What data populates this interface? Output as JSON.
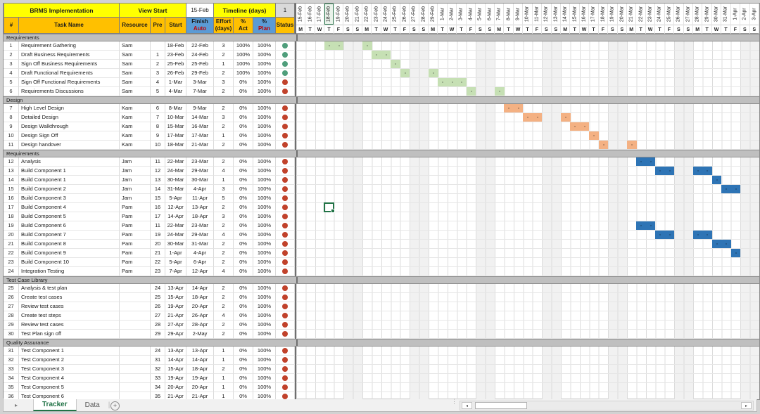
{
  "header": {
    "title": "BRMS Implementation",
    "view_start_label": "View Start",
    "view_start_value": "15-Feb",
    "timeline_label": "Timeline (days)",
    "timeline_value": "1"
  },
  "columns": {
    "num": "#",
    "task": "Task Name",
    "resource": "Resource",
    "pre": "Pre",
    "start": "Start",
    "finish_l1": "Finish",
    "finish_l2": "Auto",
    "effort_l1": "Effort",
    "effort_l2": "(days)",
    "act_l1": "%",
    "act_l2": "Act",
    "plan_l1": "%",
    "plan_l2": "Plan",
    "status": "Status"
  },
  "timeline": {
    "dates": [
      "15-Feb",
      "16-Feb",
      "17-Feb",
      "18-Feb",
      "19-Feb",
      "20-Feb",
      "21-Feb",
      "22-Feb",
      "23-Feb",
      "24-Feb",
      "25-Feb",
      "26-Feb",
      "27-Feb",
      "28-Feb",
      "29-Feb",
      "1-Mar",
      "2-Mar",
      "3-Mar",
      "4-Mar",
      "5-Mar",
      "6-Mar",
      "7-Mar",
      "8-Mar",
      "9-Mar",
      "10-Mar",
      "11-Mar",
      "12-Mar",
      "13-Mar",
      "14-Mar",
      "15-Mar",
      "16-Mar",
      "17-Mar",
      "18-Mar",
      "19-Mar",
      "20-Mar",
      "21-Mar",
      "22-Mar",
      "23-Mar",
      "24-Mar",
      "25-Mar",
      "26-Mar",
      "27-Mar",
      "28-Mar",
      "29-Mar",
      "30-Mar",
      "31-Mar",
      "1-Apr",
      "2-Apr",
      "3-Apr"
    ],
    "day_letters": [
      "M",
      "T",
      "W",
      "T",
      "F",
      "S",
      "S",
      "M",
      "T",
      "W",
      "T",
      "F",
      "S",
      "S",
      "M",
      "T",
      "W",
      "T",
      "F",
      "S",
      "S",
      "M",
      "T",
      "W",
      "T",
      "F",
      "S",
      "S",
      "M",
      "T",
      "W",
      "T",
      "F",
      "S",
      "S",
      "M",
      "T",
      "W",
      "T",
      "F",
      "S",
      "S",
      "M",
      "T",
      "W",
      "T",
      "F",
      "S",
      "S"
    ]
  },
  "sections": [
    {
      "name": "Requirements",
      "bar": "green",
      "tasks": [
        {
          "id": "1",
          "name": "Requirement Gathering",
          "res": "Sam",
          "pre": "",
          "start": "18-Feb",
          "finish": "22-Feb",
          "eff": "3",
          "act": "100%",
          "plan": "100%",
          "status": "green",
          "cells": [
            3,
            4,
            7
          ]
        },
        {
          "id": "2",
          "name": "Draft Business Requirements",
          "res": "Sam",
          "pre": "1",
          "start": "23-Feb",
          "finish": "24-Feb",
          "eff": "2",
          "act": "100%",
          "plan": "100%",
          "status": "green",
          "cells": [
            8,
            9
          ]
        },
        {
          "id": "3",
          "name": "Sign Off Business Requirements",
          "res": "Sam",
          "pre": "2",
          "start": "25-Feb",
          "finish": "25-Feb",
          "eff": "1",
          "act": "100%",
          "plan": "100%",
          "status": "green",
          "cells": [
            10
          ]
        },
        {
          "id": "4",
          "name": "Draft Functional Requirements",
          "res": "Sam",
          "pre": "3",
          "start": "26-Feb",
          "finish": "29-Feb",
          "eff": "2",
          "act": "100%",
          "plan": "100%",
          "status": "green",
          "cells": [
            11,
            14
          ]
        },
        {
          "id": "5",
          "name": "Sign Off Functional Requirements",
          "res": "Sam",
          "pre": "4",
          "start": "1-Mar",
          "finish": "3-Mar",
          "eff": "3",
          "act": "0%",
          "plan": "100%",
          "status": "red",
          "cells": [
            15,
            16,
            17
          ]
        },
        {
          "id": "6",
          "name": "Requirements Discussions",
          "res": "Sam",
          "pre": "5",
          "start": "4-Mar",
          "finish": "7-Mar",
          "eff": "2",
          "act": "0%",
          "plan": "100%",
          "status": "red",
          "cells": [
            18,
            21
          ]
        }
      ]
    },
    {
      "name": "Design",
      "bar": "orange",
      "tasks": [
        {
          "id": "7",
          "name": "High Level Design",
          "res": "Kam",
          "pre": "6",
          "start": "8-Mar",
          "finish": "9-Mar",
          "eff": "2",
          "act": "0%",
          "plan": "100%",
          "status": "red",
          "cells": [
            22,
            23
          ]
        },
        {
          "id": "8",
          "name": "Detailed Design",
          "res": "Kam",
          "pre": "7",
          "start": "10-Mar",
          "finish": "14-Mar",
          "eff": "3",
          "act": "0%",
          "plan": "100%",
          "status": "red",
          "cells": [
            24,
            25,
            28
          ]
        },
        {
          "id": "9",
          "name": "Design Walkthrough",
          "res": "Kam",
          "pre": "8",
          "start": "15-Mar",
          "finish": "16-Mar",
          "eff": "2",
          "act": "0%",
          "plan": "100%",
          "status": "red",
          "cells": [
            29,
            30
          ]
        },
        {
          "id": "10",
          "name": "Design Sign Off",
          "res": "Kam",
          "pre": "9",
          "start": "17-Mar",
          "finish": "17-Mar",
          "eff": "1",
          "act": "0%",
          "plan": "100%",
          "status": "red",
          "cells": [
            31
          ]
        },
        {
          "id": "11",
          "name": "Design handover",
          "res": "Kam",
          "pre": "10",
          "start": "18-Mar",
          "finish": "21-Mar",
          "eff": "2",
          "act": "0%",
          "plan": "100%",
          "status": "red",
          "cells": [
            32,
            35
          ]
        }
      ]
    },
    {
      "name": "Requirements",
      "bar": "blue",
      "tasks": [
        {
          "id": "12",
          "name": "Analysis",
          "res": "Jam",
          "pre": "11",
          "start": "22-Mar",
          "finish": "23-Mar",
          "eff": "2",
          "act": "0%",
          "plan": "100%",
          "status": "red",
          "cells": [
            36,
            37
          ]
        },
        {
          "id": "13",
          "name": "Build Component 1",
          "res": "Jam",
          "pre": "12",
          "start": "24-Mar",
          "finish": "29-Mar",
          "eff": "4",
          "act": "0%",
          "plan": "100%",
          "status": "red",
          "cells": [
            38,
            39,
            42,
            43
          ]
        },
        {
          "id": "14",
          "name": "Build Component 1",
          "res": "Jam",
          "pre": "13",
          "start": "30-Mar",
          "finish": "30-Mar",
          "eff": "1",
          "act": "0%",
          "plan": "100%",
          "status": "red",
          "cells": [
            44
          ]
        },
        {
          "id": "15",
          "name": "Build Component 2",
          "res": "Jam",
          "pre": "14",
          "start": "31-Mar",
          "finish": "4-Apr",
          "eff": "3",
          "act": "0%",
          "plan": "100%",
          "status": "red",
          "cells": [
            45,
            46
          ]
        },
        {
          "id": "16",
          "name": "Build Component 3",
          "res": "Jam",
          "pre": "15",
          "start": "5-Apr",
          "finish": "11-Apr",
          "eff": "5",
          "act": "0%",
          "plan": "100%",
          "status": "red",
          "cells": []
        },
        {
          "id": "17",
          "name": "Build Component 4",
          "res": "Pam",
          "pre": "16",
          "start": "12-Apr",
          "finish": "13-Apr",
          "eff": "2",
          "act": "0%",
          "plan": "100%",
          "status": "red",
          "cells": []
        },
        {
          "id": "18",
          "name": "Build Component 5",
          "res": "Pam",
          "pre": "17",
          "start": "14-Apr",
          "finish": "18-Apr",
          "eff": "3",
          "act": "0%",
          "plan": "100%",
          "status": "red",
          "cells": []
        },
        {
          "id": "19",
          "name": "Build Component 6",
          "res": "Pam",
          "pre": "11",
          "start": "22-Mar",
          "finish": "23-Mar",
          "eff": "2",
          "act": "0%",
          "plan": "100%",
          "status": "red",
          "cells": [
            36,
            37
          ]
        },
        {
          "id": "20",
          "name": "Build Component 7",
          "res": "Pam",
          "pre": "19",
          "start": "24-Mar",
          "finish": "29-Mar",
          "eff": "4",
          "act": "0%",
          "plan": "100%",
          "status": "red",
          "cells": [
            38,
            39,
            42,
            43
          ]
        },
        {
          "id": "21",
          "name": "Build Component 8",
          "res": "Pam",
          "pre": "20",
          "start": "30-Mar",
          "finish": "31-Mar",
          "eff": "2",
          "act": "0%",
          "plan": "100%",
          "status": "red",
          "cells": [
            44,
            45
          ]
        },
        {
          "id": "22",
          "name": "Build Component 9",
          "res": "Pam",
          "pre": "21",
          "start": "1-Apr",
          "finish": "4-Apr",
          "eff": "2",
          "act": "0%",
          "plan": "100%",
          "status": "red",
          "cells": [
            46
          ]
        },
        {
          "id": "23",
          "name": "Build Component 10",
          "res": "Pam",
          "pre": "22",
          "start": "5-Apr",
          "finish": "6-Apr",
          "eff": "2",
          "act": "0%",
          "plan": "100%",
          "status": "red",
          "cells": []
        },
        {
          "id": "24",
          "name": "Integration Testing",
          "res": "Pam",
          "pre": "23",
          "start": "7-Apr",
          "finish": "12-Apr",
          "eff": "4",
          "act": "0%",
          "plan": "100%",
          "status": "red",
          "cells": []
        }
      ]
    },
    {
      "name": "Test Case Library",
      "bar": null,
      "tasks": [
        {
          "id": "25",
          "name": "Analysis & test plan",
          "res": "",
          "pre": "24",
          "start": "13-Apr",
          "finish": "14-Apr",
          "eff": "2",
          "act": "0%",
          "plan": "100%",
          "status": "red",
          "cells": []
        },
        {
          "id": "26",
          "name": "Create test cases",
          "res": "",
          "pre": "25",
          "start": "15-Apr",
          "finish": "18-Apr",
          "eff": "2",
          "act": "0%",
          "plan": "100%",
          "status": "red",
          "cells": []
        },
        {
          "id": "27",
          "name": "Review test cases",
          "res": "",
          "pre": "26",
          "start": "19-Apr",
          "finish": "20-Apr",
          "eff": "2",
          "act": "0%",
          "plan": "100%",
          "status": "red",
          "cells": []
        },
        {
          "id": "28",
          "name": "Create test steps",
          "res": "",
          "pre": "27",
          "start": "21-Apr",
          "finish": "26-Apr",
          "eff": "4",
          "act": "0%",
          "plan": "100%",
          "status": "red",
          "cells": []
        },
        {
          "id": "29",
          "name": "Review test cases",
          "res": "",
          "pre": "28",
          "start": "27-Apr",
          "finish": "28-Apr",
          "eff": "2",
          "act": "0%",
          "plan": "100%",
          "status": "red",
          "cells": []
        },
        {
          "id": "30",
          "name": "Test Plan sign off",
          "res": "",
          "pre": "29",
          "start": "29-Apr",
          "finish": "2-May",
          "eff": "2",
          "act": "0%",
          "plan": "100%",
          "status": "red",
          "cells": []
        }
      ]
    },
    {
      "name": "Quality Assurance",
      "bar": null,
      "tasks": [
        {
          "id": "31",
          "name": "Test Component 1",
          "res": "",
          "pre": "24",
          "start": "13-Apr",
          "finish": "13-Apr",
          "eff": "1",
          "act": "0%",
          "plan": "100%",
          "status": "red",
          "cells": []
        },
        {
          "id": "32",
          "name": "Test Component 2",
          "res": "",
          "pre": "31",
          "start": "14-Apr",
          "finish": "14-Apr",
          "eff": "1",
          "act": "0%",
          "plan": "100%",
          "status": "red",
          "cells": []
        },
        {
          "id": "33",
          "name": "Test Component 3",
          "res": "",
          "pre": "32",
          "start": "15-Apr",
          "finish": "18-Apr",
          "eff": "2",
          "act": "0%",
          "plan": "100%",
          "status": "red",
          "cells": []
        },
        {
          "id": "34",
          "name": "Test Component 4",
          "res": "",
          "pre": "33",
          "start": "19-Apr",
          "finish": "19-Apr",
          "eff": "1",
          "act": "0%",
          "plan": "100%",
          "status": "red",
          "cells": []
        },
        {
          "id": "35",
          "name": "Test Component 5",
          "res": "",
          "pre": "34",
          "start": "20-Apr",
          "finish": "20-Apr",
          "eff": "1",
          "act": "0%",
          "plan": "100%",
          "status": "red",
          "cells": []
        },
        {
          "id": "36",
          "name": "Test Component 6",
          "res": "",
          "pre": "35",
          "start": "21-Apr",
          "finish": "21-Apr",
          "eff": "1",
          "act": "0%",
          "plan": "100%",
          "status": "red",
          "cells": []
        }
      ]
    }
  ],
  "selection": {
    "task_id": "17",
    "col_index": 3
  },
  "sheet_bar": {
    "nav_right": "▸",
    "tabs": [
      {
        "label": "Tracker"
      },
      {
        "label": "Data"
      }
    ],
    "separator": "|",
    "add_label": "+",
    "scroll_left": "◂",
    "scroll_right": "▸",
    "split_dots": "⋮"
  },
  "colors": {
    "bar_green": "#C6E0B4",
    "bar_orange": "#F4B183",
    "bar_blue": "#2E74B5",
    "status_green": "#4F9E7B",
    "status_red": "#C1422B",
    "header_yellow": "#FFFF00",
    "header_orange": "#FFC000",
    "header_blue": "#5B9BD5",
    "excel_green": "#217346"
  }
}
